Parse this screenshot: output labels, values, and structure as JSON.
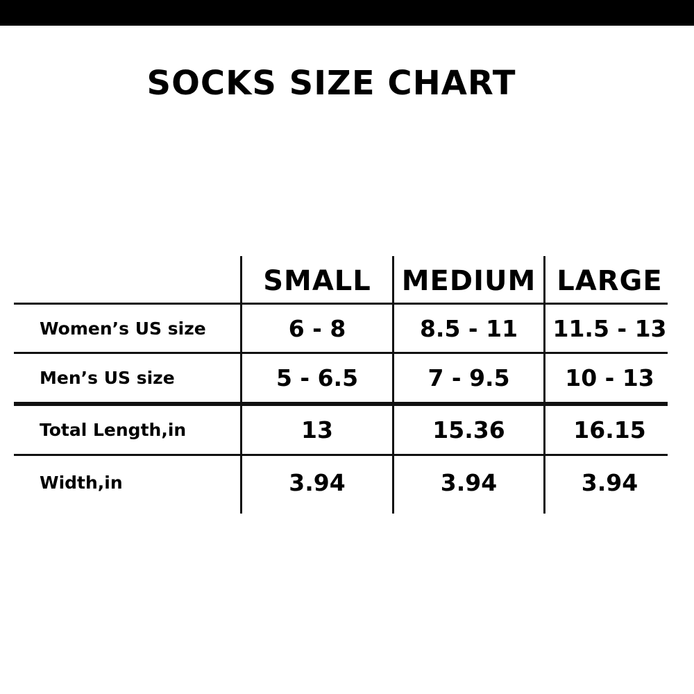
{
  "title": "SOCKS SIZE CHART",
  "columns": [
    "SMALL",
    "MEDIUM",
    "LARGE"
  ],
  "rows": [
    {
      "label": "Women’s US size",
      "values": [
        "6 - 8",
        "8.5 - 11",
        "11.5 - 13"
      ]
    },
    {
      "label": "Men’s US size",
      "values": [
        "5 - 6.5",
        "7 - 9.5",
        "10 - 13"
      ]
    },
    {
      "label": "Total Length,in",
      "values": [
        "13",
        "15.36",
        "16.15"
      ]
    },
    {
      "label": "Width,in",
      "values": [
        "3.94",
        "3.94",
        "3.94"
      ]
    }
  ]
}
